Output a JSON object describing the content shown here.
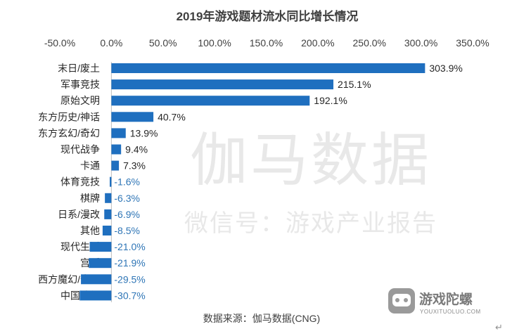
{
  "colors": {
    "bar": "#1f6fbf",
    "positive_label": "#262626",
    "negative_label": "#2e75b6"
  },
  "watermark": {
    "main": "伽马数据",
    "sub": "微信号：游戏产业报告"
  },
  "brand": {
    "name": "游戏陀螺",
    "url": "YOUXITUOLUO.COM",
    "icon": "gamepad-logo-icon"
  },
  "return_mark": "↵",
  "chart_data": {
    "type": "bar",
    "orientation": "horizontal",
    "title": "2019年游戏题材流水同比增长情况",
    "source": "数据来源：伽马数据(CNG)",
    "xlim": [
      -50,
      350
    ],
    "x_ticks": [
      "-50.0%",
      "0.0%",
      "50.0%",
      "100.0%",
      "150.0%",
      "200.0%",
      "250.0%",
      "300.0%",
      "350.0%"
    ],
    "x_tick_values": [
      -50,
      0,
      50,
      100,
      150,
      200,
      250,
      300,
      350
    ],
    "grid": false,
    "axis_position": "top",
    "categories": [
      "末日/废土",
      "军事竞技",
      "原始文明",
      "东方历史/神话",
      "东方玄幻/奇幻",
      "现代战争",
      "卡通",
      "体育竞技",
      "棋牌",
      "日系/漫改",
      "其他",
      "现代生活",
      "宫廷",
      "西方魔幻/奇幻",
      "中国武侠"
    ],
    "values": [
      303.9,
      215.1,
      192.1,
      40.7,
      13.9,
      9.4,
      7.3,
      -1.6,
      -6.3,
      -6.9,
      -8.5,
      -21.0,
      -21.9,
      -29.5,
      -30.7
    ],
    "data_labels": [
      "303.9%",
      "215.1%",
      "192.1%",
      "40.7%",
      "13.9%",
      "9.4%",
      "7.3%",
      "-1.6%",
      "-6.3%",
      "-6.9%",
      "-8.5%",
      "-21.0%",
      "-21.9%",
      "-29.5%",
      "-30.7%"
    ]
  }
}
